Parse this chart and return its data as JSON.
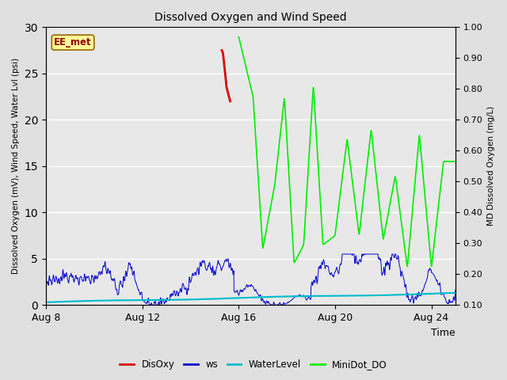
{
  "title": "Dissolved Oxygen and Wind Speed",
  "ylabel_left": "Dissolved Oxygen (mV), Wind Speed, Water Lvl (psi)",
  "ylabel_right": "MD Dissolved Oxygen (mg/L)",
  "xlabel": "Time",
  "ylim_left": [
    0,
    30
  ],
  "ylim_right": [
    0.1,
    1.0
  ],
  "yticks_left": [
    0,
    5,
    10,
    15,
    20,
    25,
    30
  ],
  "yticks_right": [
    0.1,
    0.2,
    0.3,
    0.4,
    0.5,
    0.6,
    0.7,
    0.8,
    0.9,
    1.0
  ],
  "xtick_labels": [
    "Aug 8",
    "Aug 12",
    "Aug 16",
    "Aug 20",
    "Aug 24"
  ],
  "xtick_positions": [
    0,
    4,
    8,
    12,
    16
  ],
  "xlim": [
    0,
    17
  ],
  "annotation_label": "EE_met",
  "background_color": "#e0e0e0",
  "plot_bg_color": "#e8e8e8",
  "grid_color": "#ffffff",
  "colors": {
    "DisOxy": "#dd0000",
    "ws": "#0000cc",
    "WaterLevel": "#00bbcc",
    "MiniDot_DO": "#00ee00"
  },
  "legend_labels": [
    "DisOxy",
    "ws",
    "WaterLevel",
    "MiniDot_DO"
  ],
  "ws_seed": 10,
  "disoxy_x": [
    7.3,
    7.35,
    7.38,
    7.42,
    7.46,
    7.5,
    7.55,
    7.6,
    7.65
  ],
  "disoxy_y": [
    27.5,
    27.2,
    26.5,
    25.5,
    24.5,
    23.5,
    23.0,
    22.5,
    22.0
  ],
  "md_peaks": [
    [
      8.0,
      29.0
    ],
    [
      8.6,
      22.5
    ],
    [
      9.0,
      6.0
    ],
    [
      9.5,
      13.0
    ],
    [
      9.9,
      22.5
    ],
    [
      10.3,
      4.5
    ],
    [
      10.7,
      6.5
    ],
    [
      11.1,
      23.8
    ],
    [
      11.5,
      6.5
    ],
    [
      12.0,
      7.5
    ],
    [
      12.5,
      18.0
    ],
    [
      13.0,
      7.5
    ],
    [
      13.5,
      19.0
    ],
    [
      14.0,
      7.0
    ],
    [
      14.5,
      14.0
    ],
    [
      15.0,
      4.0
    ],
    [
      15.5,
      18.5
    ],
    [
      16.0,
      4.0
    ],
    [
      16.5,
      15.5
    ],
    [
      17.0,
      15.5
    ]
  ]
}
